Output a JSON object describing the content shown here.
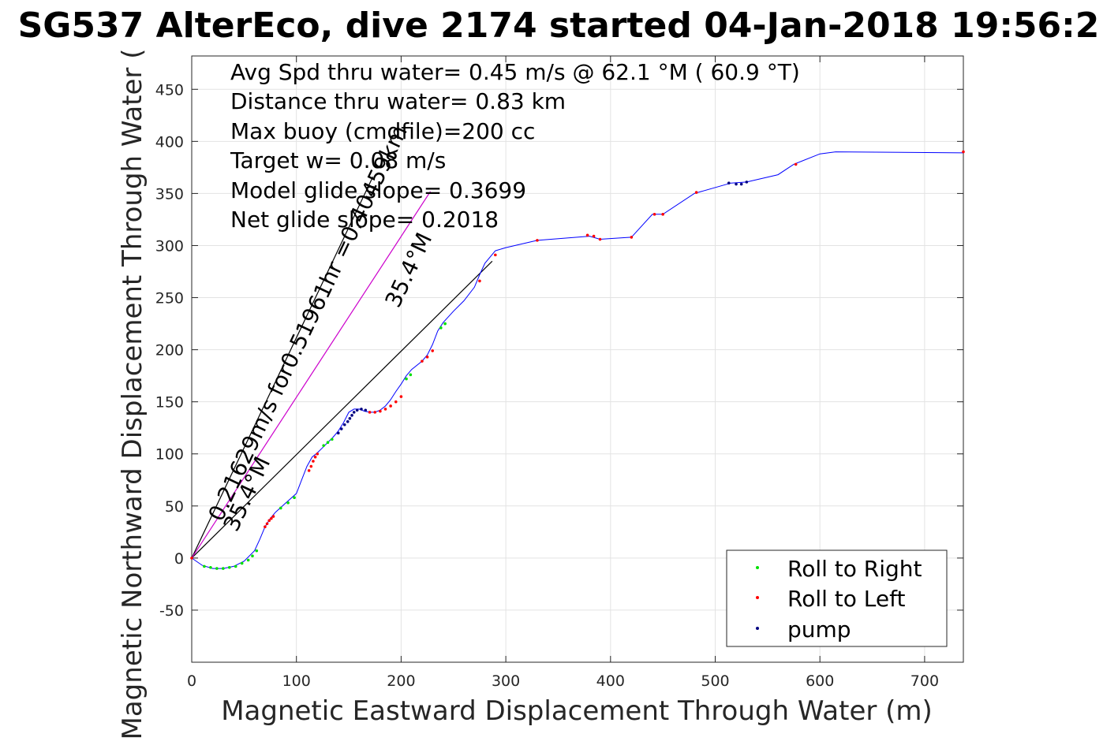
{
  "chart_data": {
    "type": "line",
    "title": "SG537 AlterEco, dive 2174 started 04-Jan-2018 19:56:2",
    "xlabel": "Magnetic Eastward Displacement Through Water (m)",
    "ylabel": "Magnetic Northward Displacement Through Water (",
    "xlim": [
      0,
      737
    ],
    "ylim": [
      -100,
      482
    ],
    "xticks": [
      0,
      100,
      200,
      300,
      400,
      500,
      600,
      700
    ],
    "yticks": [
      -50,
      0,
      50,
      100,
      150,
      200,
      250,
      300,
      350,
      400,
      450
    ],
    "grid": true,
    "legend_position": "bottom-right",
    "colors": {
      "track": "#0000ff",
      "roll_right": "#00e000",
      "roll_left": "#ff0000",
      "pump": "#000080",
      "vector": "#000000",
      "magenta": "#cc00cc"
    },
    "annotations": [
      "Avg Spd thru water=  0.45 m/s @  62.1 °M ( 60.9 °T)",
      "Distance thru water=  0.83 km",
      "Max buoy (cmdfile)=200 cc",
      "Target w= 0.08 m/s",
      "Model glide slope= 0.3699",
      "Net glide slope= 0.2018"
    ],
    "vector_labels": {
      "long": "0.21629m/s for0.51961hr =0.40459km",
      "heading_upper": "35.4°M",
      "heading_lower": "35.4°M"
    },
    "vectors": [
      {
        "name": "current-vector-long",
        "x": [
          0,
          173
        ],
        "y": [
          0,
          366
        ],
        "color": "#000000"
      },
      {
        "name": "current-vector-short",
        "x": [
          0,
          287
        ],
        "y": [
          0,
          285
        ],
        "color": "#000000"
      },
      {
        "name": "current-vector-magenta",
        "x": [
          0,
          228
        ],
        "y": [
          0,
          352
        ],
        "color": "#cc00cc"
      }
    ],
    "track": {
      "x": [
        0,
        10,
        20,
        30,
        40,
        50,
        60,
        65,
        70,
        75,
        80,
        90,
        100,
        105,
        110,
        115,
        120,
        125,
        130,
        135,
        140,
        145,
        150,
        155,
        160,
        165,
        170,
        175,
        180,
        185,
        190,
        195,
        200,
        205,
        210,
        220,
        225,
        230,
        235,
        240,
        250,
        260,
        270,
        275,
        280,
        290,
        300,
        330,
        380,
        390,
        420,
        440,
        450,
        480,
        515,
        530,
        560,
        575,
        600,
        615,
        737
      ],
      "y": [
        0,
        -7,
        -10,
        -10,
        -8,
        -3,
        7,
        18,
        30,
        38,
        44,
        53,
        62,
        75,
        88,
        97,
        101,
        106,
        111,
        116,
        122,
        130,
        140,
        143,
        143,
        141,
        140,
        140,
        142,
        146,
        152,
        160,
        167,
        175,
        181,
        189,
        195,
        205,
        218,
        226,
        237,
        247,
        260,
        272,
        283,
        295,
        298,
        305,
        309,
        306,
        308,
        330,
        330,
        350,
        360,
        361,
        368,
        378,
        388,
        390,
        389
      ]
    },
    "series": [
      {
        "name": "Roll to Right",
        "marker_color": "#00e000",
        "x": [
          12,
          18,
          24,
          30,
          36,
          42,
          48,
          54,
          58,
          62,
          85,
          92,
          98,
          126,
          130,
          134,
          205,
          209,
          238,
          242
        ],
        "y": [
          -8,
          -9,
          -10,
          -10,
          -9,
          -8,
          -5,
          -2,
          2,
          7,
          48,
          53,
          58,
          108,
          111,
          114,
          172,
          176,
          221,
          225
        ]
      },
      {
        "name": "Roll to Left",
        "marker_color": "#ff0000",
        "x": [
          0,
          70,
          72,
          74,
          76,
          78,
          112,
          114,
          116,
          118,
          120,
          170,
          175,
          180,
          185,
          190,
          195,
          200,
          220,
          225,
          230,
          275,
          290,
          330,
          378,
          384,
          390,
          420,
          442,
          450,
          482,
          577,
          737
        ],
        "y": [
          0,
          30,
          33,
          36,
          38,
          40,
          84,
          88,
          93,
          97,
          100,
          140,
          140,
          141,
          143,
          146,
          150,
          155,
          189,
          193,
          199,
          266,
          291,
          305,
          310,
          309,
          306,
          308,
          330,
          330,
          351,
          378,
          390
        ]
      },
      {
        "name": "pump",
        "marker_color": "#000080",
        "x": [
          140,
          143,
          146,
          149,
          151,
          153,
          155,
          158,
          162,
          166,
          513,
          520,
          525,
          530
        ],
        "y": [
          120,
          124,
          128,
          131,
          134,
          137,
          140,
          142,
          143,
          142,
          360,
          359,
          359,
          361
        ]
      }
    ]
  }
}
